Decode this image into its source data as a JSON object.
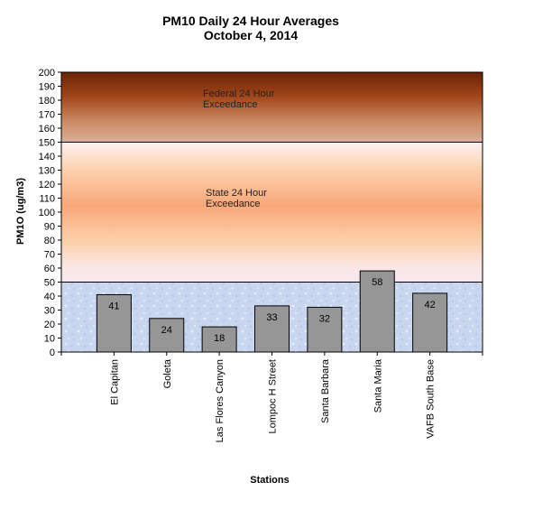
{
  "chart_data": {
    "type": "bar",
    "title": "PM10 Daily 24 Hour Averages",
    "subtitle": "October 4, 2014",
    "xlabel": "Stations",
    "ylabel": "PM1O (ug/m3)",
    "ylim": [
      0,
      200
    ],
    "ytick_step": 10,
    "categories": [
      "El Capitan",
      "Goleta",
      "Las Flores Canyon",
      "Lompoc H Street",
      "Santa Barbara",
      "Santa Maria",
      "VAFB South Base"
    ],
    "values": [
      41,
      24,
      18,
      33,
      32,
      58,
      42
    ],
    "bar_color": "#969696",
    "grid": false,
    "legend": "none",
    "bands": [
      {
        "name": "good",
        "from": 0,
        "to": 50,
        "label_lines": [],
        "color": "#c9d8f2"
      },
      {
        "name": "state",
        "from": 50,
        "to": 150,
        "label_lines": [
          "State 24 Hour",
          "Exceedance"
        ],
        "color": "#f9b07e"
      },
      {
        "name": "federal",
        "from": 150,
        "to": 200,
        "label_lines": [
          "Federal 24 Hour",
          "Exceedance"
        ],
        "color": "#9b3e12"
      }
    ]
  }
}
